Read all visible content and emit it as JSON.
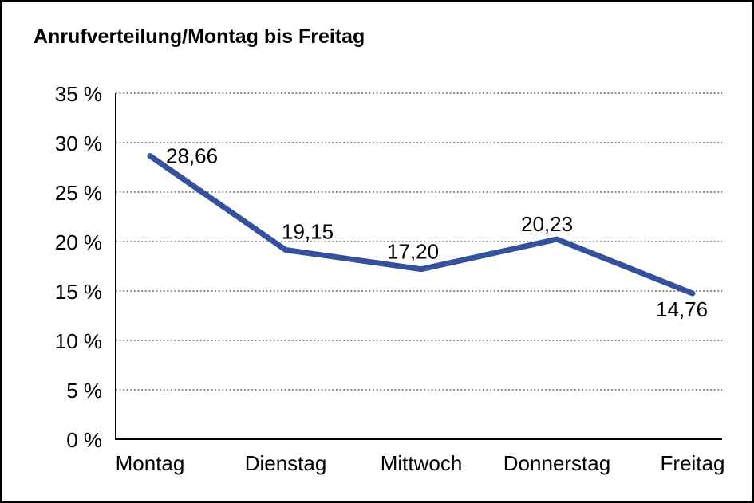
{
  "window": {
    "background_color": "#ffffff",
    "border_color": "#000000"
  },
  "chart_data": {
    "type": "line",
    "title": "Anrufverteilung/Montag bis Freitag",
    "categories": [
      "Montag",
      "Dienstag",
      "Mittwoch",
      "Donnerstag",
      "Freitag"
    ],
    "values": [
      28.66,
      19.15,
      17.2,
      20.23,
      14.76
    ],
    "value_labels": [
      "28,66",
      "19,15",
      "17,20",
      "20,23",
      "14,76"
    ],
    "xlabel": "",
    "ylabel": "",
    "ylim": [
      0,
      35
    ],
    "ytick_step": 5,
    "ytick_labels": [
      "0 %",
      "5 %",
      "10 %",
      "15 %",
      "20 %",
      "25 %",
      "30 %",
      "35 %"
    ],
    "grid": "horizontal dotted",
    "legend": "none",
    "line_color": "#35519E",
    "axis_color": "#000000",
    "grid_color": "#3c3c3c",
    "text_color": "#000000"
  }
}
